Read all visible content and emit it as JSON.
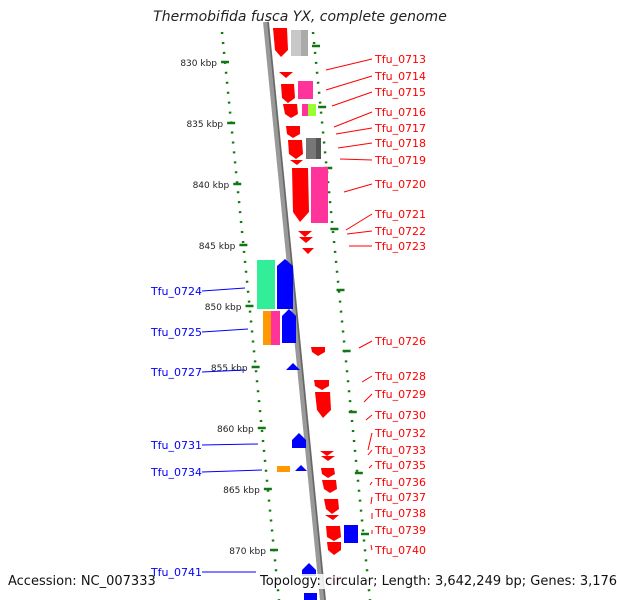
{
  "title": "Thermobifida fusca YX, complete genome",
  "footer": {
    "accession": "Accession: NC_007333",
    "summary": "Topology: circular; Length: 3,642,249 bp; Genes: 3,176"
  },
  "colors": {
    "red": "#ff0000",
    "blue": "#0000ff",
    "magenta": "#ff3399",
    "gray": "#bbbbbb",
    "darkgray": "#777777",
    "green": "#33ee99",
    "lime": "#99ff33",
    "orange": "#ff9900",
    "tick": "#117711",
    "axis": "#888888"
  },
  "scale": [
    {
      "label": "830 kbp",
      "kbp": 830
    },
    {
      "label": "835 kbp",
      "kbp": 835
    },
    {
      "label": "840 kbp",
      "kbp": 840
    },
    {
      "label": "845 kbp",
      "kbp": 845
    },
    {
      "label": "850 kbp",
      "kbp": 850
    },
    {
      "label": "855 kbp",
      "kbp": 855
    },
    {
      "label": "860 kbp",
      "kbp": 860
    },
    {
      "label": "865 kbp",
      "kbp": 865
    },
    {
      "label": "870 kbp",
      "kbp": 870
    }
  ],
  "right_labels": [
    {
      "label": "Tfu_0713"
    },
    {
      "label": "Tfu_0714"
    },
    {
      "label": "Tfu_0715"
    },
    {
      "label": "Tfu_0716"
    },
    {
      "label": "Tfu_0717"
    },
    {
      "label": "Tfu_0718"
    },
    {
      "label": "Tfu_0719"
    },
    {
      "label": "Tfu_0720"
    },
    {
      "label": "Tfu_0721"
    },
    {
      "label": "Tfu_0722"
    },
    {
      "label": "Tfu_0723"
    },
    {
      "label": "Tfu_0726"
    },
    {
      "label": "Tfu_0728"
    },
    {
      "label": "Tfu_0729"
    },
    {
      "label": "Tfu_0730"
    },
    {
      "label": "Tfu_0732"
    },
    {
      "label": "Tfu_0733"
    },
    {
      "label": "Tfu_0735"
    },
    {
      "label": "Tfu_0736"
    },
    {
      "label": "Tfu_0737"
    },
    {
      "label": "Tfu_0738"
    },
    {
      "label": "Tfu_0739"
    },
    {
      "label": "Tfu_0740"
    }
  ],
  "left_labels": [
    {
      "label": "Tfu_0724"
    },
    {
      "label": "Tfu_0725"
    },
    {
      "label": "Tfu_0727"
    },
    {
      "label": "Tfu_0731"
    },
    {
      "label": "Tfu_0734"
    },
    {
      "label": "Tfu_0741"
    }
  ]
}
